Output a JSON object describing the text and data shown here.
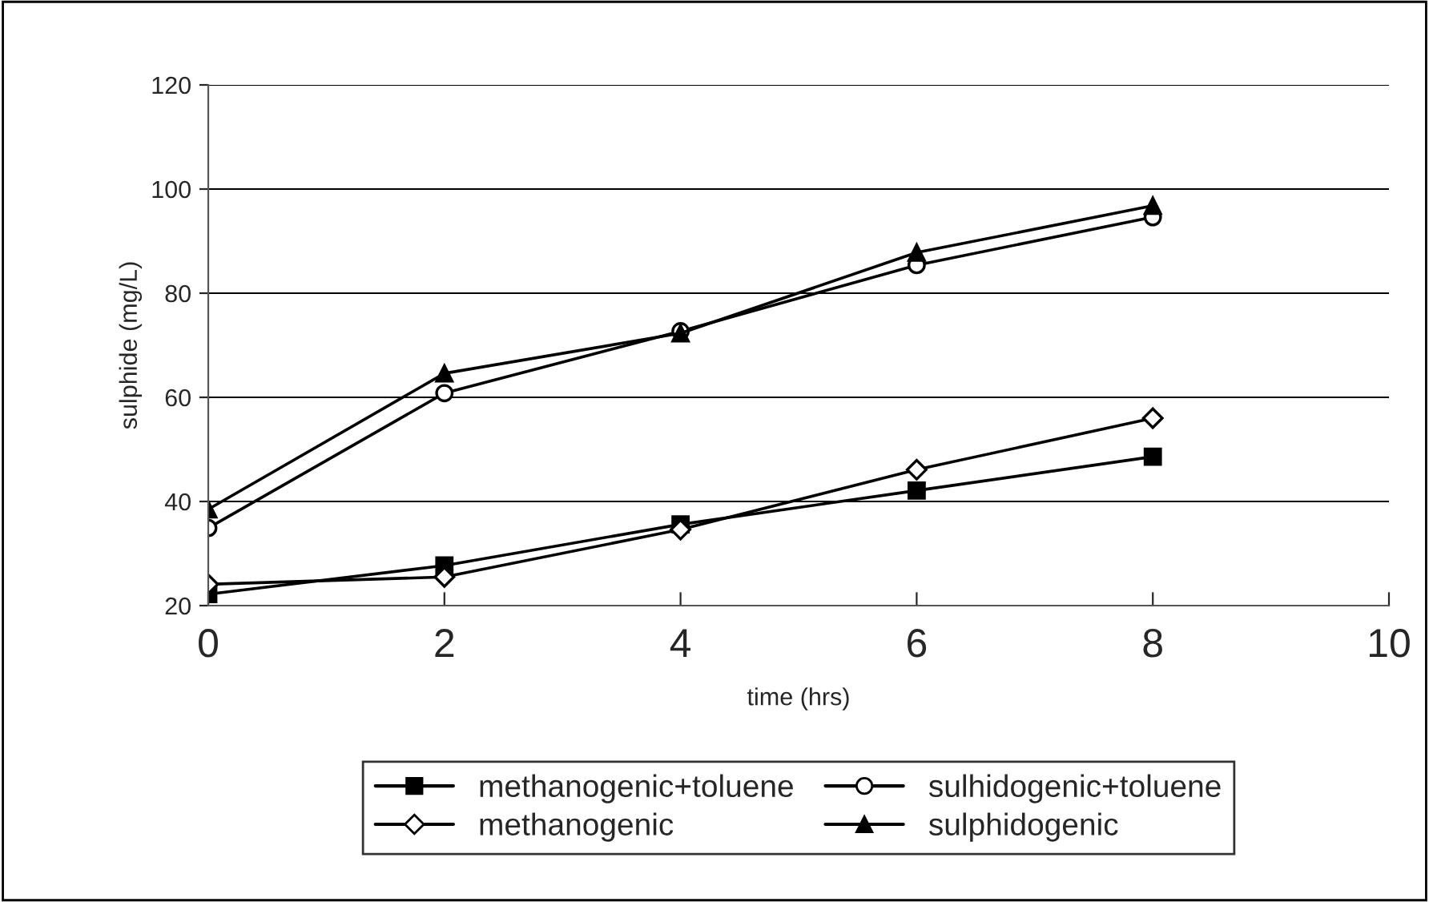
{
  "chart_data": {
    "type": "line",
    "xlabel": "time (hrs)",
    "ylabel": "sulphide (mg/L)",
    "x": [
      0,
      2,
      4,
      6,
      8
    ],
    "series": [
      {
        "name": "methanogenic+toluene",
        "color": "#000000",
        "marker": "square",
        "values": [
          22.2,
          27.7,
          35.6,
          42.1,
          48.6
        ]
      },
      {
        "name": "sulhidogenic+toluene",
        "color": "#000000",
        "marker": "circle",
        "values": [
          34.9,
          60.8,
          72.7,
          85.4,
          94.6
        ]
      },
      {
        "name": "methanogenic",
        "color": "#000000",
        "marker": "diamond",
        "values": [
          24.1,
          25.5,
          34.6,
          46.1,
          56.0
        ]
      },
      {
        "name": "sulphidogenic",
        "color": "#000000",
        "marker": "triangle",
        "values": [
          38.5,
          64.6,
          72.3,
          87.8,
          96.8
        ]
      }
    ],
    "xlim": [
      0,
      10
    ],
    "xticks": [
      0,
      2,
      4,
      6,
      8,
      10
    ],
    "ylim": [
      20,
      120
    ],
    "yticks": [
      20,
      40,
      60,
      80,
      100,
      120
    ],
    "grid": "y",
    "legend": "bottom",
    "line_style": "solid"
  }
}
